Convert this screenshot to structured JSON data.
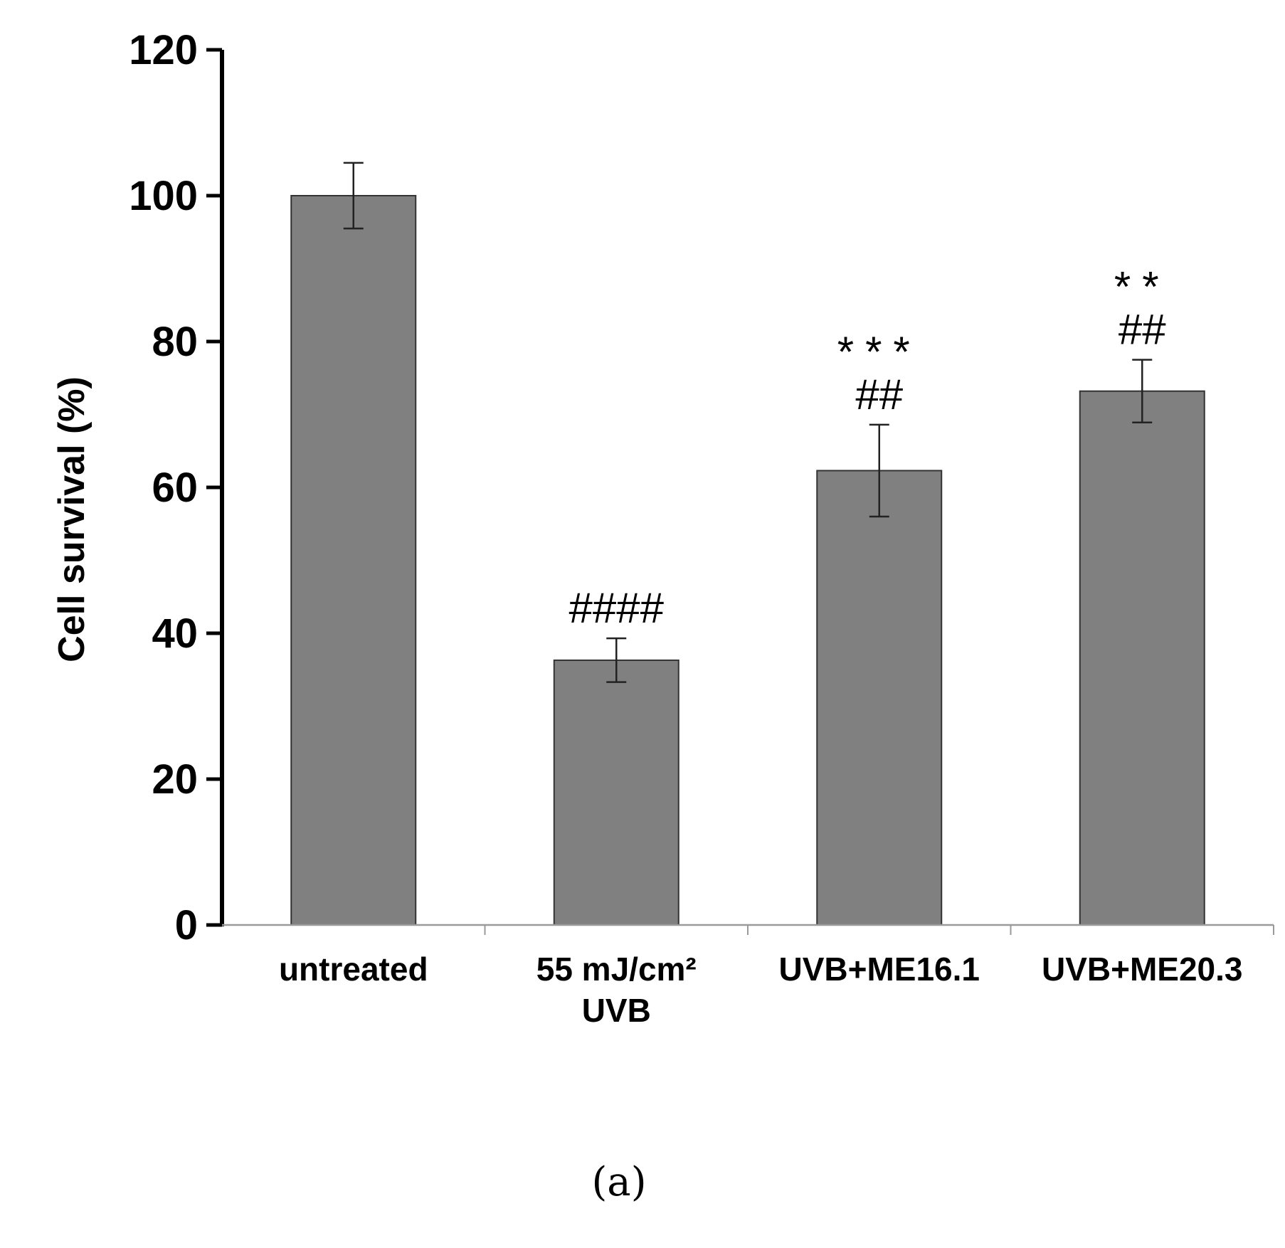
{
  "chart_data": {
    "type": "bar",
    "categories": [
      "untreated",
      "55 mJ/cm² UVB",
      "UVB+ME16.1",
      "UVB+ME20.3"
    ],
    "category_lines": [
      [
        "untreated"
      ],
      [
        "55 mJ/cm²",
        "UVB"
      ],
      [
        "UVB+ME16.1"
      ],
      [
        "UVB+ME20.3"
      ]
    ],
    "values": [
      100,
      36.3,
      62.3,
      73.2
    ],
    "errors": [
      4.5,
      3.0,
      6.3,
      4.3
    ],
    "annotations": [
      [],
      [
        "####"
      ],
      [
        "***",
        "##"
      ],
      [
        "**",
        "##"
      ]
    ],
    "ylabel": "Cell survival (%)",
    "ylim": [
      0,
      120
    ],
    "yticks": [
      "0",
      "20",
      "40",
      "60",
      "80",
      "100",
      "120"
    ],
    "grid": false,
    "bar_color": "#808080",
    "panel_label": "(a)"
  }
}
